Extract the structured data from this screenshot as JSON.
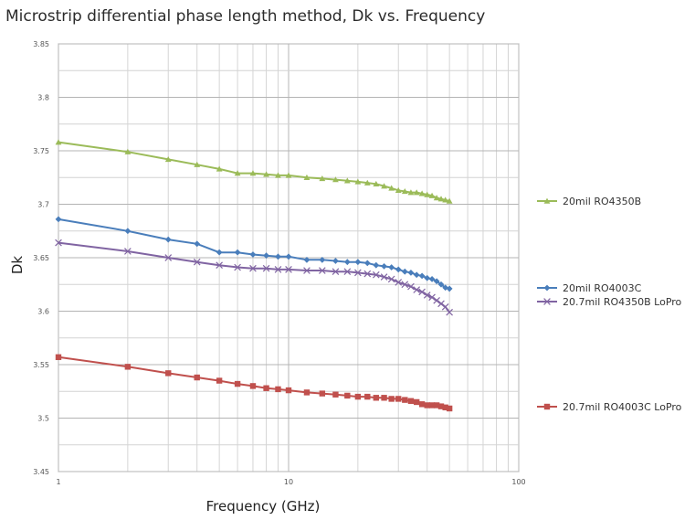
{
  "chart_data": {
    "type": "line",
    "title": "Microstrip differential phase length method, Dk vs. Frequency",
    "xlabel": "Frequency (GHz)",
    "ylabel": "Dk",
    "xscale": "log",
    "xlim": [
      1,
      100
    ],
    "ylim": [
      3.45,
      3.85
    ],
    "x_ticks": [
      "1",
      "10",
      "100"
    ],
    "y_ticks": [
      "3.45",
      "3.5",
      "3.55",
      "3.6",
      "3.65",
      "3.7",
      "3.75",
      "3.8",
      "3.85"
    ],
    "grid": true,
    "legend": "right",
    "series": [
      {
        "name": "20mil RO4350B",
        "color": "#9bbb59",
        "marker": "triangle",
        "x": [
          1,
          2,
          3,
          4,
          5,
          6,
          7,
          8,
          9,
          10,
          12,
          14,
          16,
          18,
          20,
          22,
          24,
          26,
          28,
          30,
          32,
          34,
          36,
          38,
          40,
          42,
          44,
          46,
          48,
          50
        ],
        "y": [
          3.758,
          3.749,
          3.742,
          3.737,
          3.733,
          3.729,
          3.729,
          3.728,
          3.727,
          3.727,
          3.725,
          3.724,
          3.723,
          3.722,
          3.721,
          3.72,
          3.719,
          3.717,
          3.715,
          3.713,
          3.712,
          3.711,
          3.711,
          3.71,
          3.709,
          3.708,
          3.706,
          3.705,
          3.704,
          3.703
        ]
      },
      {
        "name": "20mil RO4003C",
        "color": "#4a7ebb",
        "marker": "diamond",
        "x": [
          1,
          2,
          3,
          4,
          5,
          6,
          7,
          8,
          9,
          10,
          12,
          14,
          16,
          18,
          20,
          22,
          24,
          26,
          28,
          30,
          32,
          34,
          36,
          38,
          40,
          42,
          44,
          46,
          48,
          50
        ],
        "y": [
          3.686,
          3.675,
          3.667,
          3.663,
          3.655,
          3.655,
          3.653,
          3.652,
          3.651,
          3.651,
          3.648,
          3.648,
          3.647,
          3.646,
          3.646,
          3.645,
          3.643,
          3.642,
          3.641,
          3.639,
          3.637,
          3.636,
          3.634,
          3.633,
          3.631,
          3.63,
          3.628,
          3.625,
          3.622,
          3.621
        ]
      },
      {
        "name": "20.7mil RO4350B LoPro",
        "color": "#8064a2",
        "marker": "x",
        "x": [
          1,
          2,
          3,
          4,
          5,
          6,
          7,
          8,
          9,
          10,
          12,
          14,
          16,
          18,
          20,
          22,
          24,
          26,
          28,
          30,
          32,
          34,
          36,
          38,
          40,
          42,
          44,
          46,
          48,
          50
        ],
        "y": [
          3.664,
          3.656,
          3.65,
          3.646,
          3.643,
          3.641,
          3.64,
          3.64,
          3.639,
          3.639,
          3.638,
          3.638,
          3.637,
          3.637,
          3.636,
          3.635,
          3.634,
          3.632,
          3.63,
          3.627,
          3.625,
          3.623,
          3.62,
          3.618,
          3.615,
          3.613,
          3.61,
          3.607,
          3.604,
          3.599
        ]
      },
      {
        "name": "20.7mil RO4003C LoPro",
        "color": "#c0504d",
        "marker": "square",
        "x": [
          1,
          2,
          3,
          4,
          5,
          6,
          7,
          8,
          9,
          10,
          12,
          14,
          16,
          18,
          20,
          22,
          24,
          26,
          28,
          30,
          32,
          34,
          36,
          38,
          40,
          42,
          44,
          46,
          48,
          50
        ],
        "y": [
          3.557,
          3.548,
          3.542,
          3.538,
          3.535,
          3.532,
          3.53,
          3.528,
          3.527,
          3.526,
          3.524,
          3.523,
          3.522,
          3.521,
          3.52,
          3.52,
          3.519,
          3.519,
          3.518,
          3.518,
          3.517,
          3.516,
          3.515,
          3.513,
          3.512,
          3.512,
          3.512,
          3.511,
          3.51,
          3.509
        ]
      }
    ]
  }
}
